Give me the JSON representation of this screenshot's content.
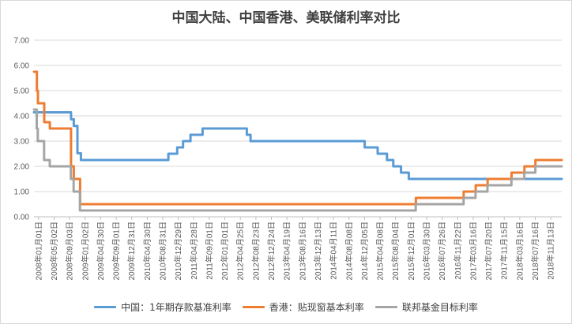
{
  "chart_data": {
    "type": "line",
    "title": "中国大陆、中国香港、美联储利率对比",
    "xlabel": "",
    "ylabel": "",
    "ylim": [
      0,
      7
    ],
    "yticks": [
      "0.00",
      "1.00",
      "2.00",
      "3.00",
      "4.00",
      "5.00",
      "6.00",
      "7.00"
    ],
    "x_tick_labels": [
      "2008年01月01日",
      "2008年05月02日",
      "2008年09月03日",
      "2009年01月02日",
      "2009年04月30日",
      "2009年09月01日",
      "2009年12月31日",
      "2010年04月30日",
      "2010年08月31日",
      "2010年12月29日",
      "2011年04月28日",
      "2011年09月01日",
      "2012年01月01日",
      "2012年04月25日",
      "2012年08月23日",
      "2012年12月24日",
      "2013年04月19日",
      "2013年08月16日",
      "2013年12月13日",
      "2014年04月11日",
      "2014年08月08日",
      "2014年12月05日",
      "2015年04月08日",
      "2015年08月04日",
      "2015年12月01日",
      "2016年03月30日",
      "2016年07月26日",
      "2016年11月22日",
      "2017年03月16日",
      "2017年07月20日",
      "2017年11月15日",
      "2018年03月16日",
      "2018年07月16日",
      "2018年11月13日"
    ],
    "x_range": [
      "2008-01-01",
      "2018-12-31"
    ],
    "grid": "horizontal",
    "legend_position": "bottom",
    "series": [
      {
        "name": "中国：1年期存款基准利率",
        "color": "#5b9bd5",
        "points": [
          [
            "2008-01-01",
            4.14
          ],
          [
            "2008-10-09",
            3.87
          ],
          [
            "2008-10-30",
            3.6
          ],
          [
            "2008-11-27",
            2.52
          ],
          [
            "2008-12-23",
            2.25
          ],
          [
            "2010-10-20",
            2.5
          ],
          [
            "2010-12-26",
            2.75
          ],
          [
            "2011-02-09",
            3.0
          ],
          [
            "2011-04-06",
            3.25
          ],
          [
            "2011-07-07",
            3.5
          ],
          [
            "2012-06-08",
            3.25
          ],
          [
            "2012-07-06",
            3.0
          ],
          [
            "2014-11-22",
            2.75
          ],
          [
            "2015-03-01",
            2.5
          ],
          [
            "2015-05-11",
            2.25
          ],
          [
            "2015-06-28",
            2.0
          ],
          [
            "2015-08-26",
            1.75
          ],
          [
            "2015-10-24",
            1.5
          ],
          [
            "2018-12-31",
            1.5
          ]
        ]
      },
      {
        "name": "香港：贴现窗基本利率",
        "color": "#ed7d31",
        "points": [
          [
            "2008-01-01",
            5.75
          ],
          [
            "2008-01-23",
            5.0
          ],
          [
            "2008-01-31",
            4.5
          ],
          [
            "2008-03-19",
            3.75
          ],
          [
            "2008-05-01",
            3.5
          ],
          [
            "2008-10-09",
            2.0
          ],
          [
            "2008-10-30",
            1.5
          ],
          [
            "2008-12-17",
            0.5
          ],
          [
            "2015-12-17",
            0.75
          ],
          [
            "2016-12-15",
            1.0
          ],
          [
            "2017-03-16",
            1.25
          ],
          [
            "2017-06-15",
            1.5
          ],
          [
            "2017-12-14",
            1.75
          ],
          [
            "2018-03-22",
            2.0
          ],
          [
            "2018-06-14",
            2.25
          ],
          [
            "2018-12-31",
            2.25
          ]
        ]
      },
      {
        "name": "联邦基金目标利率",
        "color": "#a5a5a5",
        "points": [
          [
            "2008-01-01",
            4.25
          ],
          [
            "2008-01-22",
            3.5
          ],
          [
            "2008-01-30",
            3.0
          ],
          [
            "2008-03-18",
            2.25
          ],
          [
            "2008-04-30",
            2.0
          ],
          [
            "2008-10-08",
            1.5
          ],
          [
            "2008-10-29",
            1.0
          ],
          [
            "2008-12-16",
            0.25
          ],
          [
            "2015-12-16",
            0.5
          ],
          [
            "2016-12-14",
            0.75
          ],
          [
            "2017-03-15",
            1.0
          ],
          [
            "2017-06-14",
            1.25
          ],
          [
            "2017-12-13",
            1.5
          ],
          [
            "2018-03-21",
            1.75
          ],
          [
            "2018-06-13",
            2.0
          ],
          [
            "2018-12-31",
            2.0
          ]
        ]
      }
    ]
  }
}
